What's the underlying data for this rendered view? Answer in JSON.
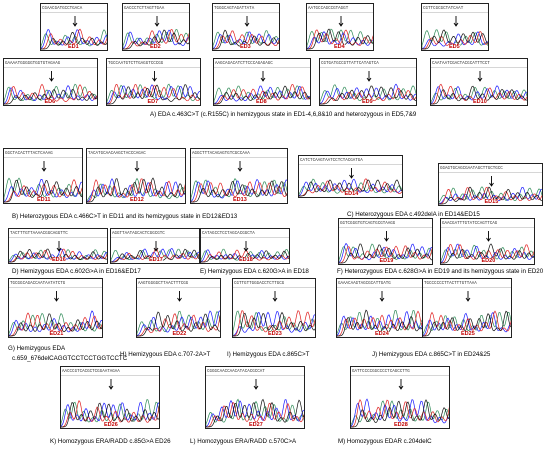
{
  "panels": [
    {
      "label": "ED1"
    },
    {
      "label": "ED2"
    },
    {
      "label": "ED3"
    },
    {
      "label": "ED4"
    },
    {
      "label": "ED5"
    },
    {
      "label": "ED6"
    },
    {
      "label": "ED7"
    },
    {
      "label": "ED8"
    },
    {
      "label": "ED9"
    },
    {
      "label": "ED10"
    },
    {
      "label": "ED11"
    },
    {
      "label": "ED12"
    },
    {
      "label": "ED13"
    },
    {
      "label": "ED14"
    },
    {
      "label": "ED15"
    },
    {
      "label": "ED16"
    },
    {
      "label": "ED17"
    },
    {
      "label": "ED18"
    },
    {
      "label": "ED19"
    },
    {
      "label": "ED20"
    },
    {
      "label": "ED21"
    },
    {
      "label": "ED22"
    },
    {
      "label": "ED23"
    },
    {
      "label": "ED24"
    },
    {
      "label": "ED25"
    },
    {
      "label": "ED26"
    },
    {
      "label": "ED27"
    },
    {
      "label": "ED28"
    }
  ],
  "captions": {
    "A": "A) EDA c.463C>T (c.R155C) in hemizygous state in  ED1-4,6,8&10  and heterozygous in ED5,7&9",
    "B": "B)  Heterozygous EDA c.466C>T in ED11 and its hemizygous state in ED12&ED13",
    "C": "C)  Heterozygous EDA c.492delA in ED14&ED15",
    "D": "D)  Hemizygous EDA c.602G>A in ED16&ED17",
    "E": "E)  Hemizygous EDA c.620G>A in ED18",
    "F": "F)  Heterozygous EDA c.628G>A in ED19 and its hemizygous state in ED20",
    "G1": "G) Hemizygous EDA",
    "G2": "c.659_676delCAGGTCCTCCTGGTCCTC",
    "H": "H) Hemizygous EDA c.707-2A>T",
    "I": "I)  Hemizygous EDA c.865C>T",
    "J": "J)  Hemizygous EDA c.865C>T in ED24&25",
    "K": "K)  Homozygous ERA/RADD c.85G>A  ED26",
    "L": "L)  Homozygous ERA/RADD c.570C>A",
    "M": "M)  Homozygous EDAR c.204delC"
  },
  "colors": {
    "trace_a": "#2e8b57",
    "trace_b": "#1a1aff",
    "trace_c": "#e02020",
    "trace_d": "#111111",
    "label": "#c00000"
  }
}
